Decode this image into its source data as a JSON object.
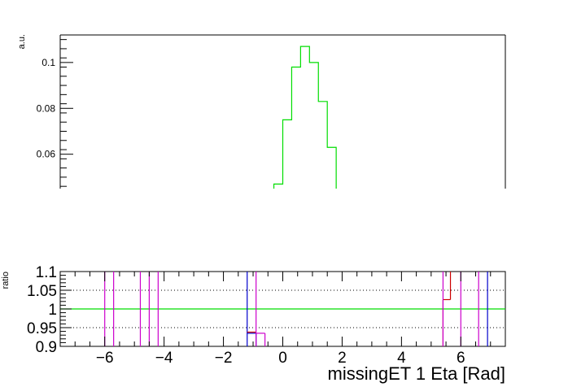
{
  "chart_data": [
    {
      "type": "line",
      "panel": "top",
      "ylabel": "a.u.",
      "ylim": [
        0.045,
        0.112
      ],
      "xlim": [
        -7.5,
        7.5
      ],
      "ytick_values": [
        0.06,
        0.08,
        0.1
      ],
      "ytick_labels": [
        "0.06",
        "0.08",
        "0.1"
      ],
      "series": [
        {
          "color": "#00dd00",
          "step_edges": [
            -0.3,
            0.0,
            0.3,
            0.6,
            0.9,
            1.2,
            1.5,
            1.8
          ],
          "values": [
            0.047,
            0.075,
            0.098,
            0.107,
            0.1,
            0.083,
            0.063
          ]
        }
      ]
    },
    {
      "type": "line",
      "panel": "ratio",
      "xlabel": "missingET 1 Eta [Rad]",
      "ylabel": "ratio",
      "ylim": [
        0.9,
        1.1
      ],
      "xlim": [
        -7.5,
        7.5
      ],
      "ytick_values": [
        0.9,
        0.95,
        1.0,
        1.05,
        1.1
      ],
      "ytick_labels": [
        "0.9",
        "0.95",
        "1",
        "1.05",
        "1.1"
      ],
      "xtick_values": [
        -6,
        -4,
        -2,
        0,
        2,
        4,
        6
      ],
      "xtick_labels": [
        "−6",
        "−4",
        "−2",
        "0",
        "2",
        "4",
        "6"
      ],
      "grid_y": [
        0.95,
        1.0,
        1.05
      ],
      "reference_line": {
        "y": 1.0,
        "color": "#00dd00"
      },
      "series": [
        {
          "color": "#0000cc",
          "segments": [
            [
              -1.2,
              0.935,
              -0.9,
              0.935
            ],
            [
              -1.2,
              0.9,
              -1.2,
              1.1
            ],
            [
              -0.9,
              0.9,
              -0.9,
              0.935
            ],
            [
              6.9,
              0.9,
              6.9,
              1.1
            ]
          ]
        },
        {
          "color": "#cc0000",
          "segments": [
            [
              -1.2,
              0.938,
              -0.9,
              0.938
            ],
            [
              5.4,
              1.025,
              5.65,
              1.025
            ],
            [
              5.65,
              1.025,
              5.65,
              1.1
            ],
            [
              5.4,
              0.9,
              5.4,
              1.025
            ]
          ]
        },
        {
          "color": "#cc00cc",
          "segments": [
            [
              -6.0,
              0.9,
              -6.0,
              1.1
            ],
            [
              -5.7,
              0.9,
              -5.7,
              1.1
            ],
            [
              -4.8,
              0.9,
              -4.8,
              1.1
            ],
            [
              -4.5,
              0.9,
              -4.5,
              1.1
            ],
            [
              -4.2,
              0.9,
              -4.2,
              1.1
            ],
            [
              -0.9,
              0.9,
              -0.9,
              1.1
            ],
            [
              -0.9,
              0.935,
              -0.6,
              0.935
            ],
            [
              -0.6,
              0.9,
              -0.6,
              0.935
            ],
            [
              5.4,
              0.9,
              5.4,
              1.1
            ],
            [
              6.0,
              0.9,
              6.0,
              1.1
            ],
            [
              6.6,
              0.9,
              6.6,
              1.1
            ]
          ]
        }
      ]
    }
  ]
}
